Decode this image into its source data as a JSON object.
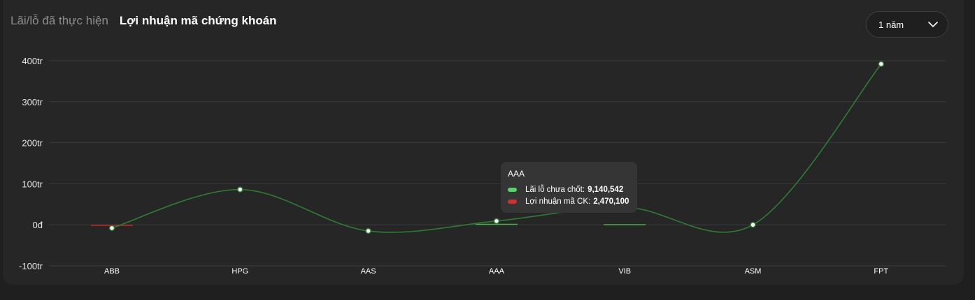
{
  "tabs": [
    {
      "label": "Lãi/lỗ đã thực hiện",
      "active": false
    },
    {
      "label": "Lợi nhuận mã chứng khoán",
      "active": true
    }
  ],
  "period_select": {
    "value": "1 năm",
    "icon": "chevron-down-icon"
  },
  "chart_data": {
    "type": "bar",
    "title": "",
    "categories": [
      "ABB",
      "HPG",
      "AAS",
      "AAA",
      "VIB",
      "ASM",
      "FPT"
    ],
    "y_ticks": [
      "400tr",
      "300tr",
      "200tr",
      "100tr",
      "0đ",
      "-100tr"
    ],
    "ylim": [
      -100000000,
      400000000
    ],
    "grid": true,
    "series": [
      {
        "name": "Lãi lỗ chưa chốt",
        "type": "line",
        "color": "#2e7d32",
        "values": [
          -8000000,
          86000000,
          -15000000,
          9140542,
          43000000,
          0,
          392000000
        ]
      },
      {
        "name": "Lợi nhuận mã CK",
        "type": "bar",
        "values": [
          -1200000,
          0,
          0,
          2470100,
          1500000,
          0,
          0
        ],
        "colors": [
          "#c62828",
          "#4caf50",
          "#4caf50",
          "#4caf50",
          "#4caf50",
          "#4caf50",
          "#4caf50"
        ]
      }
    ]
  },
  "tooltip": {
    "category": "AAA",
    "rows": [
      {
        "label": "Lãi lỗ chưa chốt:",
        "value": "9,140,542",
        "color": "#4cd964"
      },
      {
        "label": "Lợi nhuận mã CK:",
        "value": "2,470,100",
        "color": "#d32f2f"
      }
    ]
  }
}
